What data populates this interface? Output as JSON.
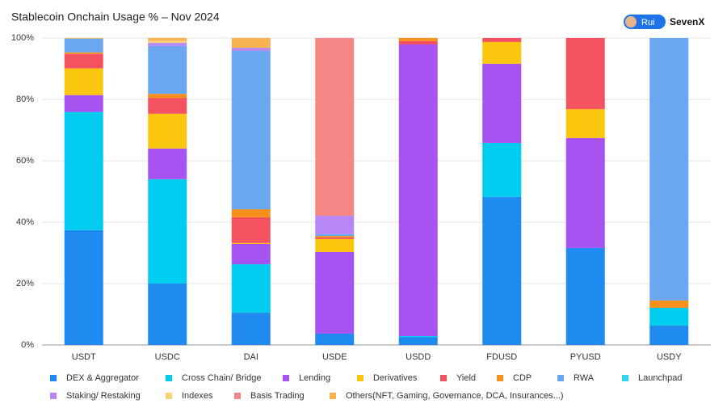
{
  "chart_data": {
    "type": "stacked_bar",
    "title": "Stablecoin Onchain Usage % – Nov 2024",
    "badge": {
      "user": "Rui",
      "brand": "SevenX"
    },
    "categories": [
      "USDT",
      "USDC",
      "DAI",
      "USDE",
      "USDD",
      "FDUSD",
      "PYUSD",
      "USDY"
    ],
    "ylim": [
      0,
      100
    ],
    "yticks": [
      {
        "value": 0,
        "label": "0%"
      },
      {
        "value": 20,
        "label": "20%"
      },
      {
        "value": 40,
        "label": "40%"
      },
      {
        "value": 60,
        "label": "60%"
      },
      {
        "value": 80,
        "label": "80%"
      },
      {
        "value": 100,
        "label": "100%"
      }
    ],
    "grid": true,
    "legend": "bottom",
    "series": [
      {
        "name": "DEX & Aggregator",
        "color": "#1f8bf0",
        "values": [
          37.4,
          20,
          10.5,
          3.7,
          2.6,
          48.2,
          31.6,
          6.3
        ]
      },
      {
        "name": "Cross Chain/ Bridge",
        "color": "#00ccf0",
        "values": [
          38.5,
          34,
          15.8,
          0,
          0.3,
          17.6,
          0,
          5.8
        ]
      },
      {
        "name": "Lending",
        "color": "#a653f2",
        "values": [
          5.5,
          10,
          6.6,
          26.6,
          95,
          25.8,
          35.8,
          0
        ]
      },
      {
        "name": "Derivatives",
        "color": "#fbc60e",
        "values": [
          8.7,
          11.3,
          0.3,
          4.2,
          0,
          7.1,
          9.4,
          0
        ]
      },
      {
        "name": "Yield",
        "color": "#f5525f",
        "values": [
          4.7,
          5.2,
          8.4,
          0.5,
          1.1,
          1.3,
          23.2,
          0
        ]
      },
      {
        "name": "CDP",
        "color": "#f7911c",
        "values": [
          0.5,
          1.3,
          2.6,
          0.5,
          1,
          0,
          0,
          2.4
        ]
      },
      {
        "name": "RWA",
        "color": "#6ba6f0",
        "values": [
          4.5,
          15.6,
          51.6,
          0.6,
          0,
          0,
          0,
          85.5
        ]
      },
      {
        "name": "Launchpad",
        "color": "#2fd6ee",
        "values": [
          0,
          0,
          0,
          0,
          0,
          0,
          0,
          0
        ]
      },
      {
        "name": "Staking/ Restaking",
        "color": "#b787f5",
        "values": [
          0,
          1,
          1,
          6,
          0,
          0,
          0,
          0
        ]
      },
      {
        "name": "Indexes",
        "color": "#f8d27c",
        "values": [
          0,
          0.6,
          0,
          0,
          0,
          0,
          0,
          0
        ]
      },
      {
        "name": "Basis Trading",
        "color": "#f78686",
        "values": [
          0,
          0,
          0,
          57.9,
          0,
          0,
          0,
          0
        ]
      },
      {
        "name": "Others(NFT, Gaming, Governance, DCA, Insurances...)",
        "color": "#f6b24e",
        "values": [
          0.2,
          1,
          3.2,
          0,
          0,
          0,
          0,
          0
        ]
      }
    ]
  }
}
